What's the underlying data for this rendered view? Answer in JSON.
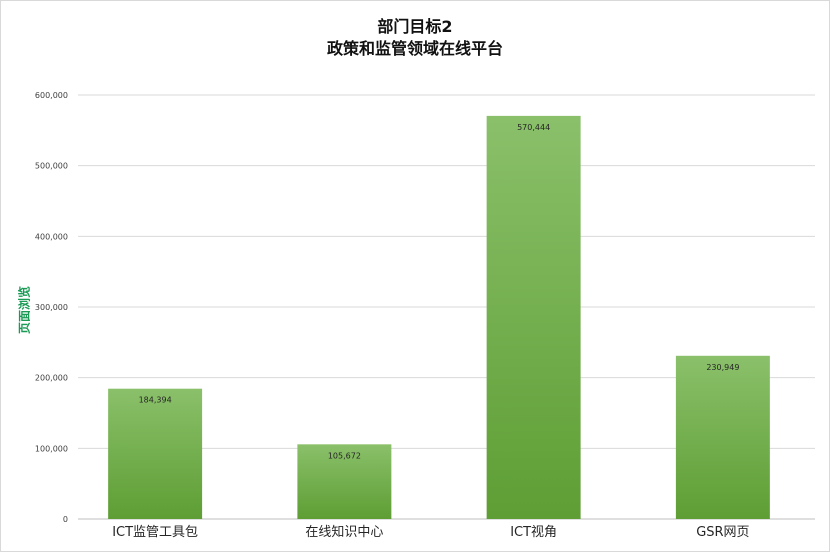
{
  "chart_data": {
    "type": "bar",
    "title": "部门目标2",
    "subtitle": "政策和监管领域在线平台",
    "xlabel": "",
    "ylabel": "页面浏览",
    "ylim": [
      0,
      600000
    ],
    "yticks": [
      0,
      100000,
      200000,
      300000,
      400000,
      500000,
      600000
    ],
    "ytick_labels": [
      "0",
      "100,000",
      "200,000",
      "300,000",
      "400,000",
      "500,000",
      "600,000"
    ],
    "categories": [
      "ICT监管工具包",
      "在线知识中心",
      "ICT视角",
      "GSR网页"
    ],
    "values": [
      184394,
      105672,
      570444,
      230949
    ],
    "data_labels": [
      "184,394",
      "105,672",
      "570,444",
      "230,949"
    ],
    "grid": true,
    "legend": "none",
    "colors": {
      "bar_top": "#8ac06a",
      "bar_bottom": "#5e9e34",
      "grid": "#d9d9d9",
      "ylabel": "#1a9a55"
    }
  }
}
